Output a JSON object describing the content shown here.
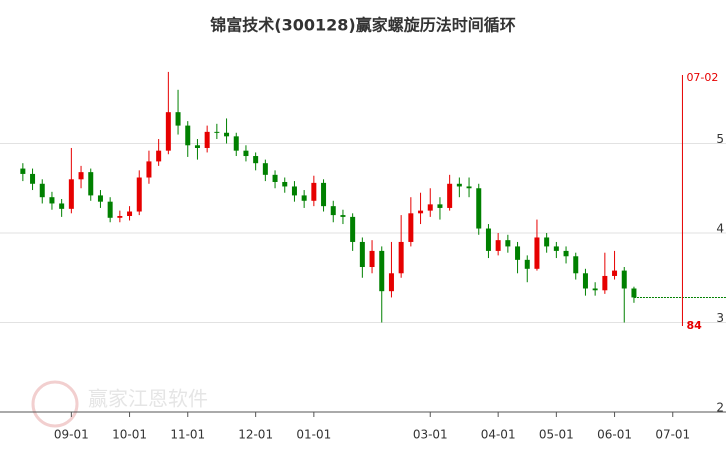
{
  "chart_data": {
    "type": "candlestick",
    "title": "锦富技术(300128)赢家螺旋历法时间循环",
    "watermark": "赢家江恩软件",
    "categories": [
      null,
      null,
      null,
      null,
      null,
      "09-01",
      null,
      null,
      null,
      null,
      null,
      "10-01",
      null,
      null,
      null,
      null,
      null,
      "11-01",
      null,
      null,
      null,
      null,
      null,
      null,
      "12-01",
      null,
      null,
      null,
      null,
      null,
      "01-01",
      null,
      null,
      null,
      null,
      null,
      null,
      null,
      null,
      null,
      null,
      null,
      "03-01",
      null,
      null,
      null,
      null,
      null,
      null,
      "04-01",
      null,
      null,
      null,
      null,
      null,
      "05-01",
      null,
      null,
      null,
      null,
      null,
      "06-01",
      null,
      null,
      null,
      null,
      null,
      "07-01",
      "07-02",
      null,
      null,
      null
    ],
    "open": [
      4.72,
      4.66,
      4.55,
      4.4,
      4.33,
      4.27,
      4.6,
      4.68,
      4.42,
      4.35,
      4.17,
      4.19,
      4.24,
      4.62,
      4.8,
      4.92,
      5.35,
      5.2,
      4.98,
      4.95,
      5.13,
      5.12,
      5.08,
      4.92,
      4.86,
      4.78,
      4.65,
      4.57,
      4.52,
      4.42,
      4.36,
      4.56,
      4.3,
      4.2,
      4.18,
      3.9,
      3.62,
      3.8,
      3.35,
      3.55,
      3.9,
      4.22,
      4.25,
      4.32,
      4.28,
      4.55,
      4.52,
      4.5,
      4.05,
      3.8,
      3.92,
      3.85,
      3.7,
      3.6,
      3.95,
      3.85,
      3.8,
      3.74,
      3.55,
      3.38,
      3.36,
      3.52,
      3.58,
      3.38,
      null,
      null,
      null,
      null,
      null,
      null,
      null,
      null
    ],
    "high": [
      4.78,
      4.72,
      4.6,
      4.46,
      4.38,
      4.95,
      4.75,
      4.72,
      4.48,
      4.4,
      4.25,
      4.3,
      4.7,
      4.92,
      5.05,
      5.8,
      5.6,
      5.25,
      5.05,
      5.2,
      5.22,
      5.28,
      5.12,
      4.98,
      4.9,
      4.82,
      4.7,
      4.62,
      4.58,
      4.48,
      4.64,
      4.6,
      4.36,
      4.26,
      4.22,
      3.95,
      3.92,
      3.85,
      3.9,
      4.2,
      4.4,
      4.45,
      4.5,
      4.4,
      4.65,
      4.62,
      4.62,
      4.55,
      4.1,
      4.0,
      3.98,
      3.9,
      3.75,
      4.15,
      4.0,
      3.9,
      3.85,
      3.78,
      3.6,
      3.45,
      3.78,
      3.8,
      3.62,
      3.4,
      null,
      null,
      null,
      null,
      null,
      null,
      null,
      null
    ],
    "low": [
      4.58,
      4.48,
      4.33,
      4.26,
      4.18,
      4.22,
      4.5,
      4.36,
      4.28,
      4.12,
      4.12,
      4.14,
      4.2,
      4.55,
      4.75,
      4.88,
      5.1,
      4.85,
      4.82,
      4.9,
      5.05,
      5.0,
      4.86,
      4.8,
      4.7,
      4.58,
      4.5,
      4.45,
      4.35,
      4.28,
      4.3,
      4.24,
      4.12,
      4.1,
      3.8,
      3.5,
      3.55,
      3.0,
      3.28,
      3.5,
      3.85,
      4.1,
      4.18,
      4.15,
      4.25,
      4.4,
      4.4,
      3.98,
      3.72,
      3.75,
      3.78,
      3.55,
      3.45,
      3.58,
      3.78,
      3.72,
      3.66,
      3.48,
      3.3,
      3.3,
      3.32,
      3.48,
      3.0,
      3.22,
      null,
      null,
      null,
      null,
      null,
      null,
      null,
      null
    ],
    "close": [
      4.66,
      4.55,
      4.4,
      4.33,
      4.27,
      4.6,
      4.68,
      4.42,
      4.35,
      4.17,
      4.19,
      4.24,
      4.62,
      4.8,
      4.92,
      5.35,
      5.2,
      4.98,
      4.95,
      5.13,
      5.12,
      5.08,
      4.92,
      4.86,
      4.78,
      4.65,
      4.57,
      4.52,
      4.42,
      4.36,
      4.56,
      4.3,
      4.2,
      4.18,
      3.9,
      3.62,
      3.8,
      3.35,
      3.55,
      3.9,
      4.22,
      4.25,
      4.32,
      4.28,
      4.55,
      4.52,
      4.5,
      4.05,
      3.8,
      3.92,
      3.85,
      3.7,
      3.6,
      3.95,
      3.85,
      3.8,
      3.74,
      3.55,
      3.38,
      3.36,
      3.52,
      3.58,
      3.38,
      3.28,
      null,
      null,
      null,
      null,
      null,
      null,
      null,
      null
    ],
    "up_color": "#e60000",
    "down_color": "#008000",
    "ylim": [
      2,
      6
    ],
    "yticks": [
      2,
      3,
      4,
      5
    ],
    "grid": true,
    "vline": {
      "label": "84",
      "color": "#e60000"
    }
  }
}
